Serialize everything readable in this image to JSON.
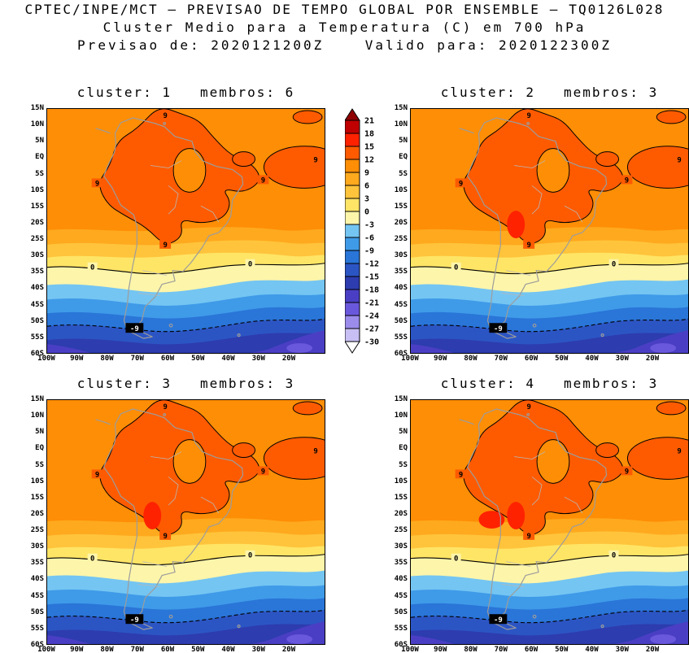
{
  "header": {
    "line1": "CPTEC/INPE/MCT — PREVISAO DE TEMPO GLOBAL POR ENSEMBLE — TQ0126L028",
    "line2": "Cluster Medio para a Temperatura (C) em 700 hPa",
    "line3": "Previsao de: 2020121200Z    Valido para: 2020122300Z"
  },
  "panels": [
    {
      "title": "cluster: 1   membros: 6",
      "cluster": 1,
      "membros": 6,
      "hot_spots": 0
    },
    {
      "title": "cluster: 2   membros: 3",
      "cluster": 2,
      "membros": 3,
      "hot_spots": 1
    },
    {
      "title": "cluster: 3   membros: 3",
      "cluster": 3,
      "membros": 3,
      "hot_spots": 1
    },
    {
      "title": "cluster: 4   membros: 3",
      "cluster": 4,
      "membros": 3,
      "hot_spots": 2
    }
  ],
  "axes": {
    "lat_ticks": [
      "15N",
      "10N",
      "5N",
      "EQ",
      "5S",
      "10S",
      "15S",
      "20S",
      "25S",
      "30S",
      "35S",
      "40S",
      "45S",
      "50S",
      "55S",
      "60S"
    ],
    "lon_ticks": [
      "100W",
      "90W",
      "80W",
      "70W",
      "60W",
      "50W",
      "40W",
      "30W",
      "20W"
    ]
  },
  "colorbar": {
    "labels": [
      21,
      18,
      15,
      12,
      9,
      6,
      3,
      0,
      -3,
      -6,
      -9,
      -12,
      -15,
      -18,
      -21,
      -24,
      -27,
      -30
    ],
    "colors": [
      "#8f0000",
      "#c00000",
      "#ff2200",
      "#fe5b00",
      "#fe8e06",
      "#ffa91e",
      "#ffc43c",
      "#ffe566",
      "#fdf5aa",
      "#74c5f2",
      "#3f9be8",
      "#2a75d8",
      "#2c55c4",
      "#2d3cae",
      "#4a3fc4",
      "#6a58dc",
      "#9b8cec",
      "#c8c0f4",
      "#ffffff"
    ]
  },
  "contours": {
    "warm_label": "9",
    "zero_label": "0",
    "cold_label": "-9"
  },
  "chart_data": {
    "type": "heatmap",
    "suptitle": "CPTEC/INPE/MCT — PREVISAO DE TEMPO GLOBAL POR ENSEMBLE — TQ0126L028",
    "title": "Cluster Medio para a Temperatura (C) em 700 hPa",
    "forecast_init": "2020121200Z",
    "forecast_valid": "2020122300Z",
    "variable": "Temperatura",
    "units": "C",
    "level": "700 hPa",
    "panels": [
      {
        "cluster": 1,
        "membros": 6
      },
      {
        "cluster": 2,
        "membros": 3
      },
      {
        "cluster": 3,
        "membros": 3
      },
      {
        "cluster": 4,
        "membros": 3
      }
    ],
    "x_tick_labels": [
      "100W",
      "90W",
      "80W",
      "70W",
      "60W",
      "50W",
      "40W",
      "30W",
      "20W"
    ],
    "y_tick_labels": [
      "15N",
      "10N",
      "5N",
      "EQ",
      "5S",
      "10S",
      "15S",
      "20S",
      "25S",
      "30S",
      "35S",
      "40S",
      "45S",
      "50S",
      "55S",
      "60S"
    ],
    "colorbar_boundaries": [
      21,
      18,
      15,
      12,
      9,
      6,
      3,
      0,
      -3,
      -6,
      -9,
      -12,
      -15,
      -18,
      -21,
      -24,
      -27,
      -30
    ],
    "contour_interval": 3,
    "labeled_contours": [
      "9",
      "0",
      "-9"
    ],
    "colorbar_position": "top-center between panels 1 and 2",
    "region": "South America",
    "grid": false
  }
}
